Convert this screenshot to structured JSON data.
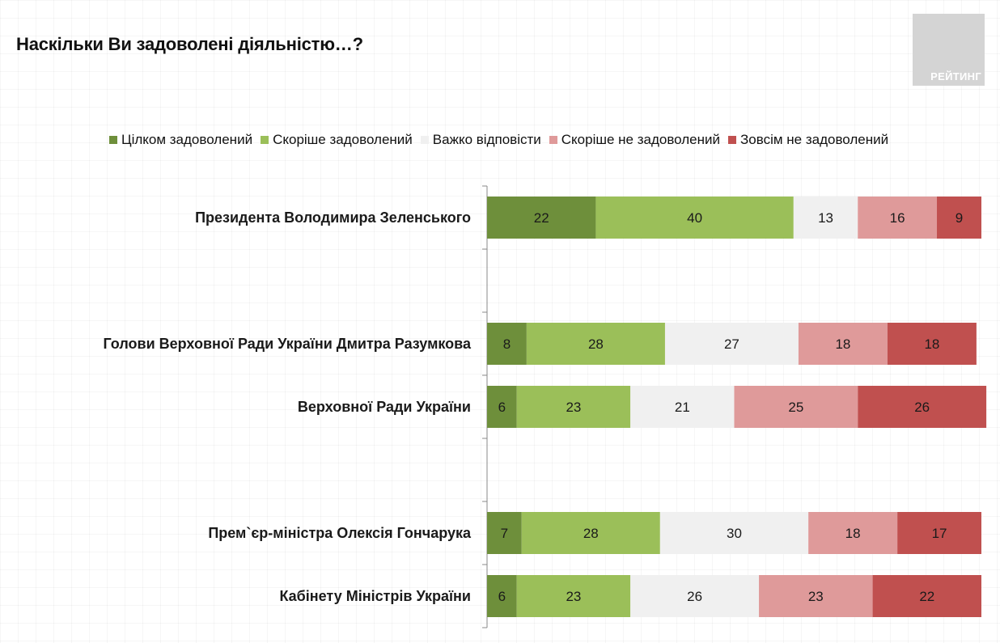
{
  "title": "Наскільки Ви задоволені діяльністю…?",
  "logo": {
    "text": "РЕЙТИНГ"
  },
  "colors": {
    "series": [
      "#6e8f3b",
      "#9bbf59",
      "#f0f0f0",
      "#df9a9a",
      "#c0504f"
    ],
    "text": "#1a1a1a",
    "axis": "#888888"
  },
  "chart_data": {
    "type": "bar",
    "orientation": "horizontal",
    "stacked": true,
    "title": "Наскільки Ви задоволені діяльністю…?",
    "legend_position": "top",
    "categories": [
      "Президента Володимира Зеленського",
      "",
      "Голови Верховної Ради України Дмитра Разумкова",
      "Верховної Ради України",
      "",
      "Прем`єр-міністра Олексія Гончарука",
      "Кабінету Міністрів України"
    ],
    "series": [
      {
        "name": "Цілком задоволений",
        "values": [
          22,
          null,
          8,
          6,
          null,
          7,
          6
        ]
      },
      {
        "name": "Скоріше задоволений",
        "values": [
          40,
          null,
          28,
          23,
          null,
          28,
          23
        ]
      },
      {
        "name": "Важко відповісти",
        "values": [
          13,
          null,
          27,
          21,
          null,
          30,
          26
        ]
      },
      {
        "name": "Скоріше не задоволений",
        "values": [
          16,
          null,
          18,
          25,
          null,
          18,
          23
        ]
      },
      {
        "name": "Зовсім не задоволений",
        "values": [
          9,
          null,
          18,
          26,
          null,
          17,
          22
        ]
      }
    ],
    "xlim": [
      0,
      100
    ],
    "grid": false,
    "data_labels": true
  }
}
